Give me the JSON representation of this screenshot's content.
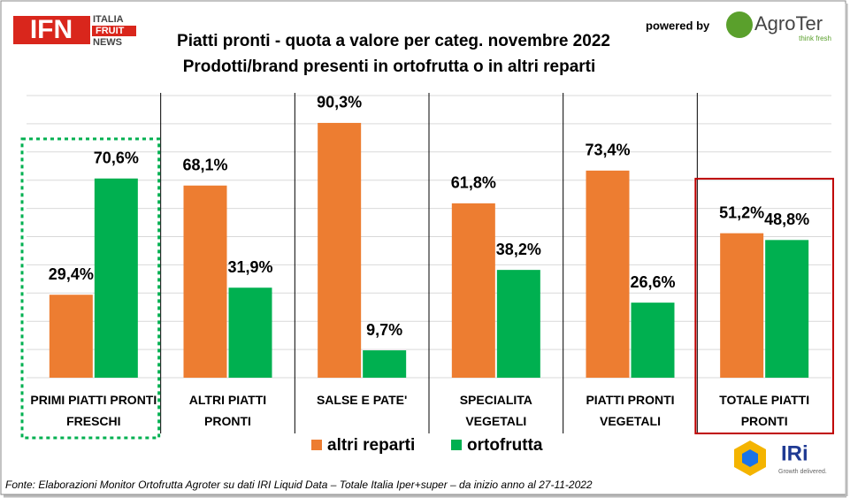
{
  "chart_data": {
    "type": "bar",
    "title": "Piatti pronti - quota a valore per categ. novembre 2022",
    "subtitle": "Prodotti/brand presenti in ortofrutta o in altri reparti",
    "categories": [
      "PRIMI PIATTI PRONTI FRESCHI",
      "ALTRI PIATTI PRONTI",
      "SALSE E PATE'",
      "SPECIALITA VEGETALI",
      "PIATTI PRONTI VEGETALI",
      "TOTALE PIATTI PRONTI"
    ],
    "series": [
      {
        "name": "altri reparti",
        "color": "#ed7d31",
        "values": [
          29.4,
          68.1,
          90.3,
          61.8,
          73.4,
          51.2
        ],
        "value_labels": [
          "29,4%",
          "68,1%",
          "90,3%",
          "61,8%",
          "73,4%",
          "51,2%"
        ]
      },
      {
        "name": "ortofrutta",
        "color": "#00b050",
        "values": [
          70.6,
          31.9,
          9.7,
          38.2,
          26.6,
          48.8
        ],
        "value_labels": [
          "70,6%",
          "31,9%",
          "9,7%",
          "38,2%",
          "26,6%",
          "48,8%"
        ]
      }
    ],
    "ylim": [
      0,
      100
    ],
    "yticks": [
      0,
      10,
      20,
      30,
      40,
      50,
      60,
      70,
      80,
      90,
      100
    ],
    "grid": true,
    "legend": "bottom",
    "source": "Fonte: Elaborazioni Monitor Ortofrutta Agroter su dati IRI Liquid Data – Totale Italia Iper+super –  da inizio anno al 27-11-2022"
  },
  "branding": {
    "ifn": "IFN",
    "ifn_line1": "ITALIA",
    "ifn_line2": "FRUIT",
    "ifn_line3": "NEWS",
    "powered_by": "powered by",
    "agroter": "AgroTer",
    "agroter_tagline": "think fresh",
    "iri": "IRi",
    "iri_tagline": "Growth delivered."
  }
}
